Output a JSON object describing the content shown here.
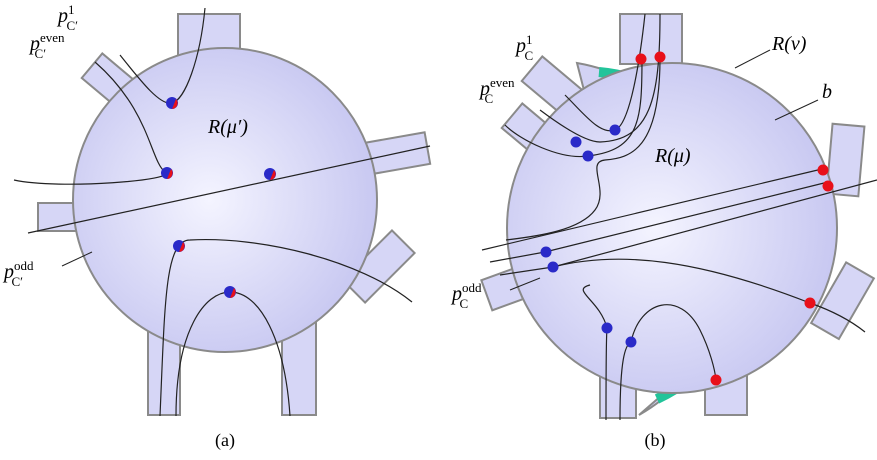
{
  "panels": [
    {
      "caption": "(a)",
      "region_label": "R(μ′)",
      "path_labels": [
        {
          "base": "p",
          "sup": "1",
          "sub": "C′"
        },
        {
          "base": "p",
          "sup": "even",
          "sub": "C′"
        },
        {
          "base": "p",
          "sup": "odd",
          "sub": "C′"
        }
      ]
    },
    {
      "caption": "(b)",
      "region_label": "R(μ)",
      "outer_label": "R(ν)",
      "band_label": "b",
      "path_labels": [
        {
          "base": "p",
          "sup": "1",
          "sub": "C"
        },
        {
          "base": "p",
          "sup": "even",
          "sub": "C"
        },
        {
          "base": "p",
          "sup": "odd",
          "sub": "C"
        }
      ]
    }
  ]
}
